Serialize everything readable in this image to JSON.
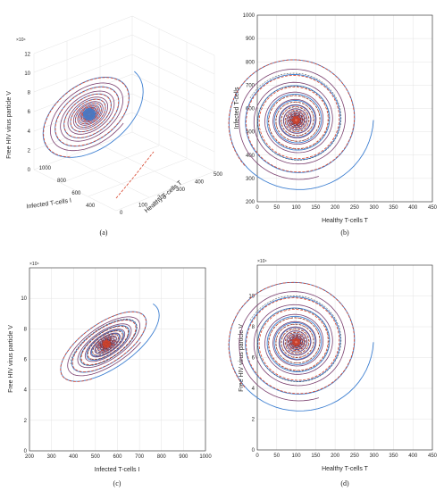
{
  "colors": {
    "blue": "#3d7fd1",
    "red": "#d9432a",
    "purple": "#7a3f6e",
    "dark": "#2a2a2a"
  },
  "chart_data": [
    {
      "panel": "a",
      "type": "line",
      "caption": "(a)",
      "exponent": "×10⁴",
      "xlabel": "Healthy T-cells T",
      "ylabel": "Infected T-cells I",
      "zlabel": "Free HIV virus particle V",
      "xticks": [
        "0",
        "100",
        "200",
        "300",
        "400",
        "500"
      ],
      "yticks": [
        "400",
        "600",
        "800",
        "1000"
      ],
      "zticks": [
        "0",
        "2",
        "4",
        "6",
        "8",
        "10",
        "12"
      ],
      "grid": true
    },
    {
      "panel": "b",
      "type": "line",
      "caption": "(b)",
      "xlabel": "Healthy T-cells T",
      "ylabel": "Infected T-cells",
      "xlim": [
        0,
        450
      ],
      "ylim": [
        200,
        1000
      ],
      "xticks": [
        "0",
        "50",
        "100",
        "150",
        "200",
        "250",
        "300",
        "350",
        "400",
        "450"
      ],
      "yticks": [
        "200",
        "300",
        "400",
        "500",
        "600",
        "700",
        "800",
        "900",
        "1000"
      ],
      "equilibrium": {
        "x": 100,
        "y": 550
      },
      "grid": true
    },
    {
      "panel": "c",
      "type": "line",
      "caption": "(c)",
      "exponent": "×10⁴",
      "xlabel": "Infected T-cells I",
      "ylabel": "Free HIV virus particle V",
      "xlim": [
        200,
        1000
      ],
      "ylim": [
        0,
        12
      ],
      "xticks": [
        "200",
        "300",
        "400",
        "500",
        "600",
        "700",
        "800",
        "900",
        "1000"
      ],
      "yticks": [
        "0",
        "2",
        "4",
        "6",
        "8",
        "10"
      ],
      "equilibrium": {
        "x": 550,
        "y": 7
      },
      "grid": true
    },
    {
      "panel": "d",
      "type": "line",
      "caption": "(d)",
      "exponent": "×10⁴",
      "xlabel": "Healthy T-cells T",
      "ylabel": "Free HIV virus particle V",
      "xlim": [
        0,
        450
      ],
      "ylim": [
        0,
        12
      ],
      "xticks": [
        "0",
        "50",
        "100",
        "150",
        "200",
        "250",
        "300",
        "350",
        "400",
        "450"
      ],
      "yticks": [
        "0",
        "2",
        "4",
        "6",
        "8",
        "10"
      ],
      "equilibrium": {
        "x": 100,
        "y": 7
      },
      "grid": true
    }
  ]
}
